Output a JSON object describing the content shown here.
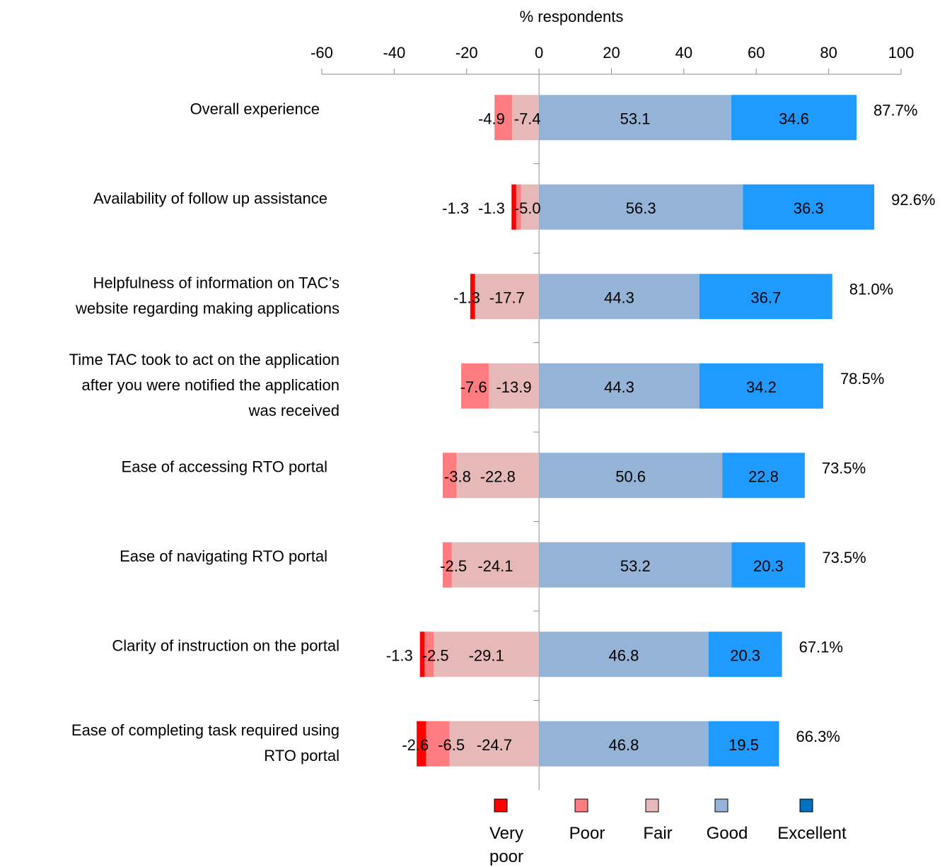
{
  "chart_data": {
    "type": "bar",
    "orientation": "horizontal",
    "stacked": "diverging",
    "xlabel": "% respondents",
    "xlim": [
      -60,
      100
    ],
    "xticks": [
      -60,
      -40,
      -20,
      0,
      20,
      40,
      60,
      80,
      100
    ],
    "grid": false,
    "legend_position": "bottom",
    "categories": [
      "Overall experience",
      "Availability of follow up assistance",
      "Helpfulness of information on TAC’s website regarding making applications",
      "Time TAC took to act on the application after you were notified the application was received",
      "Ease of accessing RTO portal",
      "Ease of navigating RTO portal",
      "Clarity of instruction on the portal",
      "Ease of completing task required using RTO portal"
    ],
    "series": [
      {
        "name": "Very poor",
        "color": "#FF0000",
        "values": [
          0,
          -1.3,
          -1.3,
          0,
          0,
          0,
          -1.3,
          -2.6
        ]
      },
      {
        "name": "Poor",
        "color": "#FF7C80",
        "values": [
          -4.9,
          -1.3,
          0,
          -7.6,
          -3.8,
          -2.5,
          -2.5,
          -6.5
        ]
      },
      {
        "name": "Fair",
        "color": "#E6B9B8",
        "values": [
          -7.4,
          -5.0,
          -17.7,
          -13.9,
          -22.8,
          -24.1,
          -29.1,
          -24.7
        ]
      },
      {
        "name": "Good",
        "color": "#95B3D7",
        "values": [
          53.1,
          56.3,
          44.3,
          44.3,
          50.6,
          53.2,
          46.8,
          46.8
        ]
      },
      {
        "name": "Excellent",
        "color": "#1F9BFF",
        "values": [
          34.6,
          36.3,
          36.7,
          34.2,
          22.8,
          20.3,
          20.3,
          19.5
        ]
      }
    ],
    "data_labels": [
      [
        "-4.9",
        "-7.4",
        "53.1",
        "34.6"
      ],
      [
        "-1.3",
        "-1.3",
        "-5.0",
        "56.3",
        "36.3"
      ],
      [
        "-1.3",
        "-17.7",
        "44.3",
        "36.7"
      ],
      [
        "-7.6",
        "-13.9",
        "44.3",
        "34.2"
      ],
      [
        "-3.8",
        "-22.8",
        "50.6",
        "22.8"
      ],
      [
        "-2.5",
        "-24.1",
        "53.2",
        "20.3"
      ],
      [
        "-1.3",
        "-2.5",
        "-29.1",
        "46.8",
        "20.3"
      ],
      [
        "-2.6",
        "-6.5",
        "-24.7",
        "46.8",
        "19.5"
      ]
    ],
    "totals": [
      "87.7%",
      "92.6%",
      "81.0%",
      "78.5%",
      "73.5%",
      "73.5%",
      "67.1%",
      "66.3%"
    ]
  }
}
